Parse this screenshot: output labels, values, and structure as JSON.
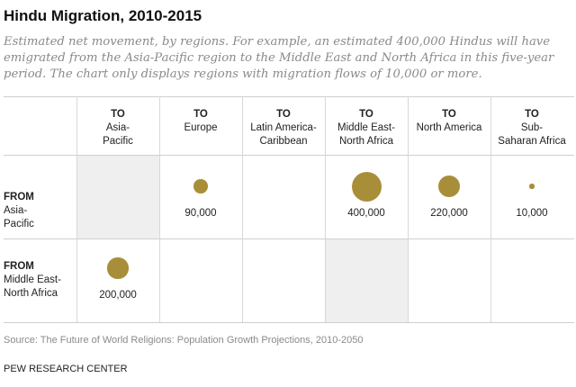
{
  "title": "Hindu Migration, 2010-2015",
  "subtitle": "Estimated net movement, by regions. For example, an estimated 400,000 Hindus will have emigrated from the Asia-Pacific region to the Middle East and North Africa in this five-year period. The chart only displays regions with migration flows of 10,000 or more.",
  "to_label": "TO",
  "from_label": "FROM",
  "source": "Source: The Future of World Religions: Population Growth Projections, 2010-2050",
  "organization": "PEW RESEARCH CENTER",
  "colors": {
    "bubble": "#a98e39",
    "shade": "#efefef",
    "grid": "#d8d8d8"
  },
  "chart_data": {
    "type": "table",
    "title": "Hindu Migration, 2010-2015",
    "columns": [
      "Asia-Pacific",
      "Europe",
      "Latin America-Caribbean",
      "Middle East-North Africa",
      "North America",
      "Sub-Saharan Africa"
    ],
    "rows": [
      "Asia-Pacific",
      "Middle East-North Africa"
    ],
    "flows": [
      {
        "from": "Asia-Pacific",
        "to": "Europe",
        "value": 90000,
        "label": "90,000"
      },
      {
        "from": "Asia-Pacific",
        "to": "Middle East-North Africa",
        "value": 400000,
        "label": "400,000"
      },
      {
        "from": "Asia-Pacific",
        "to": "North America",
        "value": 220000,
        "label": "220,000"
      },
      {
        "from": "Asia-Pacific",
        "to": "Sub-Saharan Africa",
        "value": 10000,
        "label": "10,000"
      },
      {
        "from": "Middle East-North Africa",
        "to": "Asia-Pacific",
        "value": 200000,
        "label": "200,000"
      }
    ],
    "self_cells_shaded": true
  }
}
